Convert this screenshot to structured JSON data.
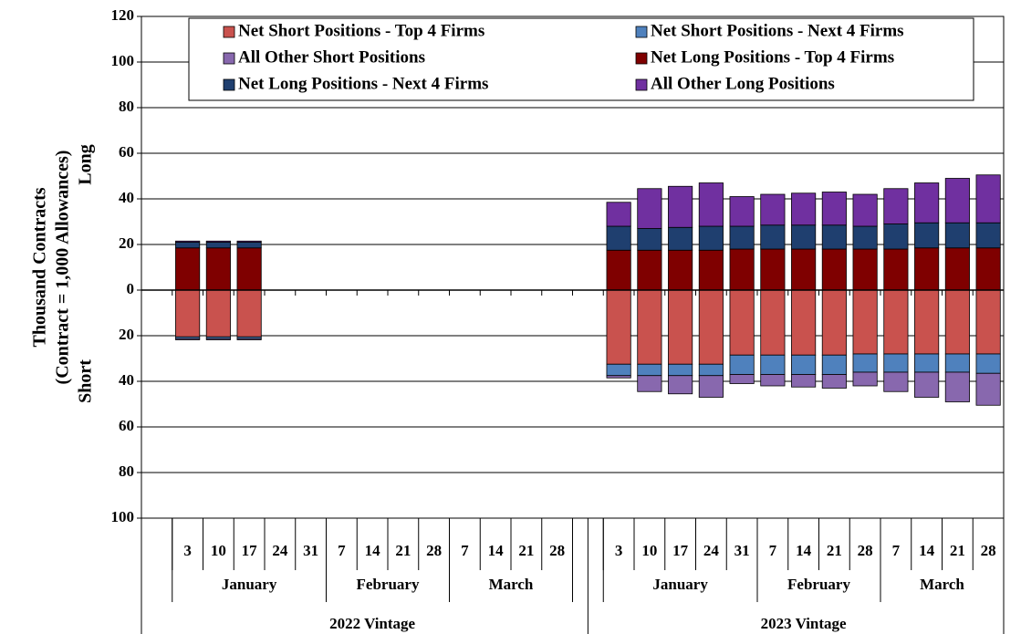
{
  "chart_data": {
    "type": "stacked_bar",
    "y_label": [
      "Thousand Contracts",
      "(Contract = 1,000 Allowances)"
    ],
    "long_label": "Long",
    "short_label": "Short",
    "ylim": [
      -100,
      120
    ],
    "yticks": [
      {
        "value": -100,
        "label": "100"
      },
      {
        "value": -80,
        "label": "80"
      },
      {
        "value": -60,
        "label": "60"
      },
      {
        "value": -40,
        "label": "40"
      },
      {
        "value": -20,
        "label": "20"
      },
      0,
      20,
      40,
      60,
      80,
      100,
      120
    ],
    "grid": true,
    "vintages": [
      {
        "label": "2022 Vintage",
        "months": [
          {
            "label": "January",
            "days": [
              "3",
              "10",
              "17",
              "24",
              "31"
            ]
          },
          {
            "label": "February",
            "days": [
              "7",
              "14",
              "21",
              "28"
            ]
          },
          {
            "label": "March",
            "days": [
              "7",
              "14",
              "21",
              "28"
            ]
          }
        ]
      },
      {
        "label": "2023 Vintage",
        "months": [
          {
            "label": "January",
            "days": [
              "3",
              "10",
              "17",
              "24",
              "31"
            ]
          },
          {
            "label": "February",
            "days": [
              "7",
              "14",
              "21",
              "28"
            ]
          },
          {
            "label": "March",
            "days": [
              "7",
              "14",
              "21",
              "28"
            ]
          }
        ]
      }
    ],
    "series": [
      {
        "name": "Net Short Positions - Top 4 Firms",
        "color": "#c9524e",
        "values": [
          -20.5,
          -20.5,
          -20.5,
          null,
          null,
          null,
          null,
          null,
          null,
          null,
          null,
          null,
          null,
          -32.5,
          -32.5,
          -32.5,
          -32.5,
          -28.5,
          -28.5,
          -28.5,
          -28.5,
          -28,
          -28,
          -28,
          -28,
          -28
        ]
      },
      {
        "name": "Net Short Positions - Next 4 Firms",
        "color": "#4f81bd",
        "values": [
          -0.8,
          -0.8,
          -0.8,
          null,
          null,
          null,
          null,
          null,
          null,
          null,
          null,
          null,
          null,
          -5,
          -5,
          -5,
          -5,
          -8.5,
          -8.5,
          -8.5,
          -8.5,
          -8,
          -8,
          -8,
          -8,
          -8.5
        ]
      },
      {
        "name": "All Other Short Positions",
        "color": "#8868ae",
        "values": [
          -0.5,
          -0.5,
          -0.5,
          null,
          null,
          null,
          null,
          null,
          null,
          null,
          null,
          null,
          null,
          -1,
          -7,
          -8,
          -9.5,
          -4,
          -5,
          -5.5,
          -6,
          -6,
          -8.5,
          -11,
          -13,
          -14
        ]
      },
      {
        "name": "Net Long Positions - Top 4 Firms",
        "color": "#7f0000",
        "values": [
          18.5,
          18.5,
          18.5,
          null,
          null,
          null,
          null,
          null,
          null,
          null,
          null,
          null,
          null,
          17.5,
          17.5,
          17.5,
          17.5,
          18,
          18,
          18,
          18,
          18,
          18,
          18.5,
          18.5,
          18.5
        ]
      },
      {
        "name": "Net Long Positions - Next 4 Firms",
        "color": "#1f3f6f",
        "values": [
          2.5,
          2.5,
          2.5,
          null,
          null,
          null,
          null,
          null,
          null,
          null,
          null,
          null,
          null,
          10.5,
          9.5,
          10,
          10.5,
          10,
          10.5,
          10.5,
          10.5,
          10,
          11,
          11,
          11,
          11
        ]
      },
      {
        "name": "All Other Long Positions",
        "color": "#7030a0",
        "values": [
          0.5,
          0.5,
          0.5,
          null,
          null,
          null,
          null,
          null,
          null,
          null,
          null,
          null,
          null,
          10.5,
          17.5,
          18,
          19,
          13,
          13.5,
          14,
          14.5,
          14,
          15.5,
          17.5,
          19.5,
          21
        ]
      }
    ]
  }
}
